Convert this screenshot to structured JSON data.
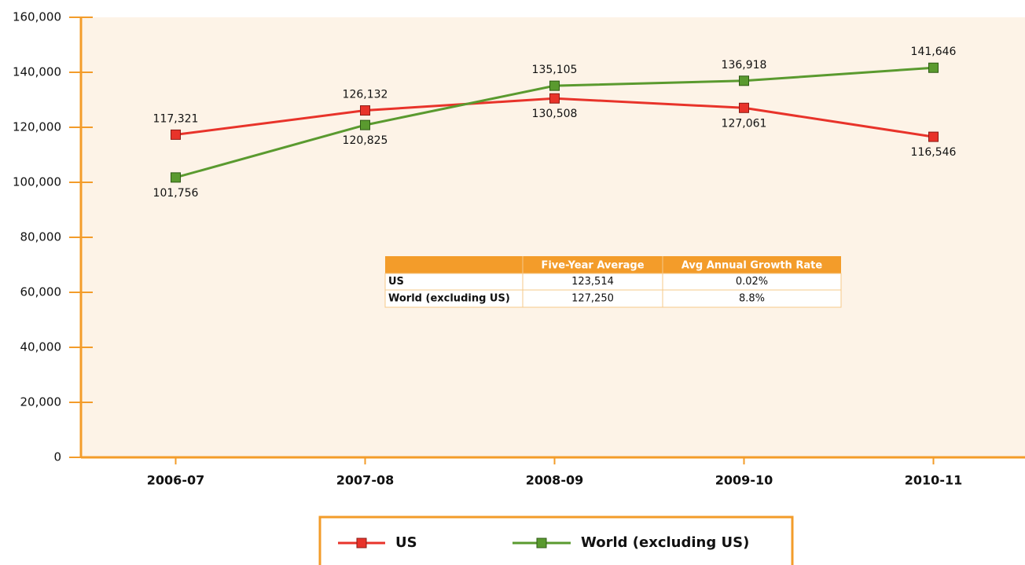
{
  "chart_data": {
    "type": "line",
    "categories": [
      "2006-07",
      "2007-08",
      "2008-09",
      "2009-10",
      "2010-11"
    ],
    "series": [
      {
        "name": "US",
        "color": "#e8332a",
        "values": [
          117321,
          126132,
          130508,
          127061,
          116546
        ],
        "value_labels": [
          "117,321",
          "126,132",
          "130,508",
          "127,061",
          "116,546"
        ]
      },
      {
        "name": "World (excluding US)",
        "color": "#5a9a2f",
        "values": [
          101756,
          120825,
          135105,
          136918,
          141646
        ],
        "value_labels": [
          "101,756",
          "120,825",
          "135,105",
          "136,918",
          "141,646"
        ]
      }
    ],
    "ylim": [
      0,
      160000
    ],
    "yticks": [
      0,
      {
        "value": 20000,
        "label": "20,000"
      },
      {
        "value": 40000,
        "label": "40,000"
      },
      {
        "value": 60000,
        "label": "60,000"
      },
      {
        "value": 80000,
        "label": "80,000"
      },
      {
        "value": 100000,
        "label": "100,000"
      },
      {
        "value": 120000,
        "label": "120,000"
      },
      {
        "value": 140000,
        "label": "140,000"
      },
      {
        "value": 160000,
        "label": "160,000"
      }
    ],
    "table": {
      "header": [
        "Five-Year Average",
        "Avg Annual Growth Rate"
      ],
      "rows": [
        [
          "US",
          "123,514",
          "0.02%"
        ],
        [
          "World (excluding US)",
          "127,250",
          "8.8%"
        ]
      ]
    }
  }
}
